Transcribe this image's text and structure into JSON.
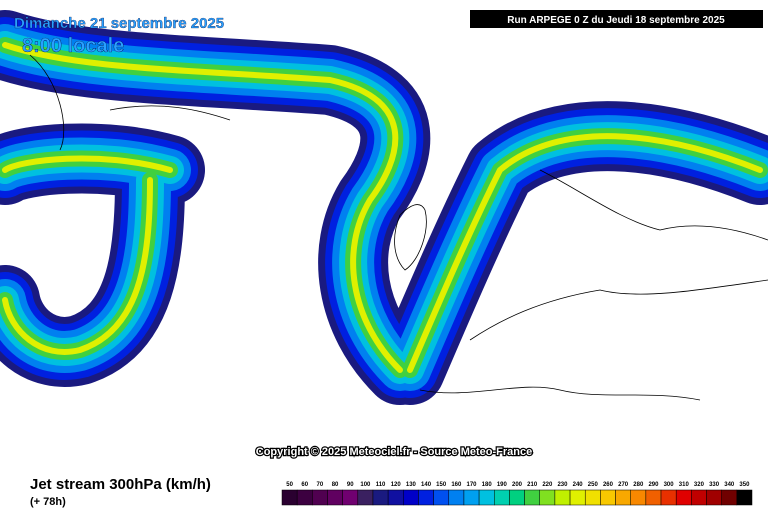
{
  "header": {
    "date": "Dimanche 21 septembre 2025",
    "time": "8:00 locale",
    "run": "Run ARPEGE 0 Z du Jeudi 18 septembre 2025"
  },
  "copyright": "Copyright © 2025 Meteociel.fr - Source Meteo-France",
  "footer": {
    "title": "Jet stream 300hPa (km/h)",
    "lead": "(+ 78h)"
  },
  "legend": [
    {
      "value": 50,
      "color": "#2a0030"
    },
    {
      "value": 60,
      "color": "#3c0040"
    },
    {
      "value": 70,
      "color": "#500050"
    },
    {
      "value": 80,
      "color": "#600060"
    },
    {
      "value": 90,
      "color": "#700070"
    },
    {
      "value": 100,
      "color": "#3a2060"
    },
    {
      "value": 110,
      "color": "#1a1a80"
    },
    {
      "value": 120,
      "color": "#1010a0"
    },
    {
      "value": 130,
      "color": "#0000c8"
    },
    {
      "value": 140,
      "color": "#0020e0"
    },
    {
      "value": 150,
      "color": "#0050f0"
    },
    {
      "value": 160,
      "color": "#0080f0"
    },
    {
      "value": 170,
      "color": "#00a0f0"
    },
    {
      "value": 180,
      "color": "#00c0e0"
    },
    {
      "value": 190,
      "color": "#00d0b0"
    },
    {
      "value": 200,
      "color": "#00d080"
    },
    {
      "value": 210,
      "color": "#40d040"
    },
    {
      "value": 220,
      "color": "#80e020"
    },
    {
      "value": 230,
      "color": "#c0f000"
    },
    {
      "value": 240,
      "color": "#e0f000"
    },
    {
      "value": 250,
      "color": "#f0e000"
    },
    {
      "value": 260,
      "color": "#f8c800"
    },
    {
      "value": 270,
      "color": "#f8a800"
    },
    {
      "value": 280,
      "color": "#f88800"
    },
    {
      "value": 290,
      "color": "#f06000"
    },
    {
      "value": 300,
      "color": "#e83000"
    },
    {
      "value": 310,
      "color": "#e00000"
    },
    {
      "value": 320,
      "color": "#c00000"
    },
    {
      "value": 330,
      "color": "#a00000"
    },
    {
      "value": 340,
      "color": "#700000"
    },
    {
      "value": 350,
      "color": "#000000"
    }
  ]
}
